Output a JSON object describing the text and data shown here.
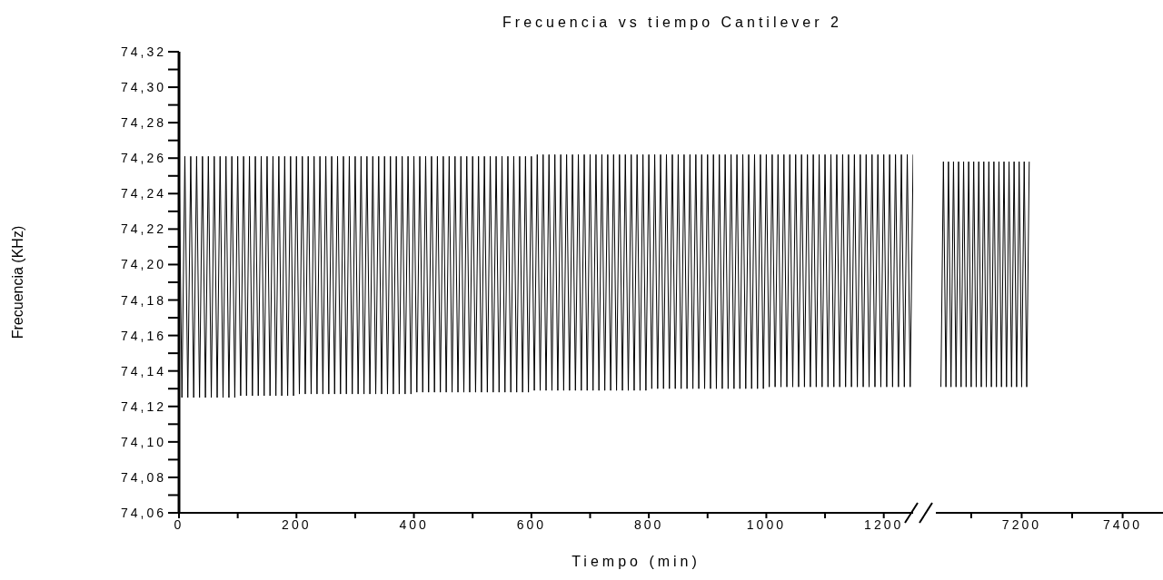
{
  "chart_data": [
    {
      "type": "line",
      "title": "Frecuencia vs tiempo Cantilever 2",
      "xlabel": "Tiempo (min)",
      "ylabel": "Frecuencia (KHz)",
      "color": "#000000",
      "xlim": [
        0,
        1250
      ],
      "xticks": [
        0,
        {
          "value": 100,
          "label": null
        },
        200,
        {
          "value": 300,
          "label": null
        },
        400,
        {
          "value": 500,
          "label": null
        },
        600,
        {
          "value": 700,
          "label": null
        },
        800,
        {
          "value": 900,
          "label": null
        },
        1000,
        {
          "value": 1100,
          "label": null
        },
        1200
      ],
      "ylim": [
        74.06,
        74.32
      ],
      "yticks": [
        {
          "value": 74.06,
          "label": "74,06"
        },
        {
          "value": 74.07,
          "label": null
        },
        {
          "value": 74.08,
          "label": "74,08"
        },
        {
          "value": 74.09,
          "label": null
        },
        {
          "value": 74.1,
          "label": "74,10"
        },
        {
          "value": 74.11,
          "label": null
        },
        {
          "value": 74.12,
          "label": "74,12"
        },
        {
          "value": 74.13,
          "label": null
        },
        {
          "value": 74.14,
          "label": "74,14"
        },
        {
          "value": 74.15,
          "label": null
        },
        {
          "value": 74.16,
          "label": "74,16"
        },
        {
          "value": 74.17,
          "label": null
        },
        {
          "value": 74.18,
          "label": "74,18"
        },
        {
          "value": 74.19,
          "label": null
        },
        {
          "value": 74.2,
          "label": "74,20"
        },
        {
          "value": 74.21,
          "label": null
        },
        {
          "value": 74.22,
          "label": "74,22"
        },
        {
          "value": 74.23,
          "label": null
        },
        {
          "value": 74.24,
          "label": "74,24"
        },
        {
          "value": 74.25,
          "label": null
        },
        {
          "value": 74.26,
          "label": "74,26"
        },
        {
          "value": 74.27,
          "label": null
        },
        {
          "value": 74.28,
          "label": "74,28"
        },
        {
          "value": 74.29,
          "label": null
        },
        {
          "value": 74.3,
          "label": "74,30"
        },
        {
          "value": 74.31,
          "label": null
        },
        {
          "value": 74.32,
          "label": "74,32"
        }
      ],
      "x": [
        0,
        5,
        10,
        15,
        20,
        25,
        30,
        35,
        40,
        45,
        50,
        55,
        60,
        65,
        70,
        75,
        80,
        85,
        90,
        95,
        100,
        105,
        110,
        115,
        120,
        125,
        130,
        135,
        140,
        145,
        150,
        155,
        160,
        165,
        170,
        175,
        180,
        185,
        190,
        195,
        200,
        205,
        210,
        215,
        220,
        225,
        230,
        235,
        240,
        245,
        250,
        255,
        260,
        265,
        270,
        275,
        280,
        285,
        290,
        295,
        300,
        305,
        310,
        315,
        320,
        325,
        330,
        335,
        340,
        345,
        350,
        355,
        360,
        365,
        370,
        375,
        380,
        385,
        390,
        395,
        400,
        405,
        410,
        415,
        420,
        425,
        430,
        435,
        440,
        445,
        450,
        455,
        460,
        465,
        470,
        475,
        480,
        485,
        490,
        495,
        500,
        505,
        510,
        515,
        520,
        525,
        530,
        535,
        540,
        545,
        550,
        555,
        560,
        565,
        570,
        575,
        580,
        585,
        590,
        595,
        600,
        605,
        610,
        615,
        620,
        625,
        630,
        635,
        640,
        645,
        650,
        655,
        660,
        665,
        670,
        675,
        680,
        685,
        690,
        695,
        700,
        705,
        710,
        715,
        720,
        725,
        730,
        735,
        740,
        745,
        750,
        755,
        760,
        765,
        770,
        775,
        780,
        785,
        790,
        795,
        800,
        805,
        810,
        815,
        820,
        825,
        830,
        835,
        840,
        845,
        850,
        855,
        860,
        865,
        870,
        875,
        880,
        885,
        890,
        895,
        900,
        905,
        910,
        915,
        920,
        925,
        930,
        935,
        940,
        945,
        950,
        955,
        960,
        965,
        970,
        975,
        980,
        985,
        990,
        995,
        1000,
        1005,
        1010,
        1015,
        1020,
        1025,
        1030,
        1035,
        1040,
        1045,
        1050,
        1055,
        1060,
        1065,
        1070,
        1075,
        1080,
        1085,
        1090,
        1095,
        1100,
        1105,
        1110,
        1115,
        1120,
        1125,
        1130,
        1135,
        1140,
        1145,
        1150,
        1155,
        1160,
        1165,
        1170,
        1175,
        1180,
        1185,
        1190,
        1195,
        1200,
        1205,
        1210,
        1215,
        1220,
        1225,
        1230,
        1235,
        1240,
        1245,
        1250
      ],
      "values": [
        74.267,
        74.125,
        74.261,
        74.125,
        74.261,
        74.125,
        74.261,
        74.125,
        74.261,
        74.125,
        74.261,
        74.125,
        74.261,
        74.125,
        74.261,
        74.125,
        74.261,
        74.125,
        74.261,
        74.125,
        74.261,
        74.126,
        74.261,
        74.126,
        74.261,
        74.126,
        74.261,
        74.126,
        74.261,
        74.126,
        74.261,
        74.126,
        74.261,
        74.126,
        74.261,
        74.126,
        74.261,
        74.126,
        74.261,
        74.126,
        74.261,
        74.127,
        74.261,
        74.127,
        74.261,
        74.127,
        74.261,
        74.127,
        74.261,
        74.127,
        74.261,
        74.127,
        74.261,
        74.127,
        74.261,
        74.127,
        74.261,
        74.127,
        74.261,
        74.127,
        74.261,
        74.127,
        74.261,
        74.127,
        74.261,
        74.127,
        74.261,
        74.127,
        74.261,
        74.127,
        74.261,
        74.127,
        74.261,
        74.127,
        74.261,
        74.127,
        74.261,
        74.127,
        74.261,
        74.127,
        74.261,
        74.128,
        74.261,
        74.128,
        74.261,
        74.128,
        74.261,
        74.128,
        74.261,
        74.128,
        74.261,
        74.128,
        74.261,
        74.128,
        74.261,
        74.128,
        74.261,
        74.128,
        74.261,
        74.128,
        74.261,
        74.128,
        74.261,
        74.128,
        74.261,
        74.128,
        74.261,
        74.128,
        74.261,
        74.128,
        74.261,
        74.128,
        74.261,
        74.128,
        74.261,
        74.128,
        74.261,
        74.128,
        74.261,
        74.128,
        74.261,
        74.129,
        74.262,
        74.129,
        74.262,
        74.129,
        74.262,
        74.129,
        74.262,
        74.129,
        74.262,
        74.129,
        74.262,
        74.129,
        74.262,
        74.129,
        74.262,
        74.129,
        74.262,
        74.129,
        74.262,
        74.129,
        74.262,
        74.129,
        74.262,
        74.129,
        74.262,
        74.129,
        74.262,
        74.129,
        74.262,
        74.129,
        74.262,
        74.129,
        74.262,
        74.129,
        74.262,
        74.129,
        74.262,
        74.129,
        74.262,
        74.13,
        74.262,
        74.13,
        74.262,
        74.13,
        74.262,
        74.13,
        74.262,
        74.13,
        74.262,
        74.13,
        74.262,
        74.13,
        74.262,
        74.13,
        74.262,
        74.13,
        74.262,
        74.13,
        74.262,
        74.13,
        74.262,
        74.13,
        74.262,
        74.13,
        74.262,
        74.13,
        74.262,
        74.13,
        74.262,
        74.13,
        74.262,
        74.13,
        74.262,
        74.13,
        74.262,
        74.13,
        74.262,
        74.13,
        74.262,
        74.131,
        74.262,
        74.131,
        74.262,
        74.131,
        74.262,
        74.131,
        74.262,
        74.131,
        74.262,
        74.131,
        74.262,
        74.131,
        74.262,
        74.131,
        74.262,
        74.131,
        74.262,
        74.131,
        74.262,
        74.131,
        74.262,
        74.131,
        74.262,
        74.131,
        74.262,
        74.131,
        74.262,
        74.131,
        74.262,
        74.131,
        74.262,
        74.131,
        74.262,
        74.131,
        74.262,
        74.131,
        74.262,
        74.131,
        74.262,
        74.131,
        74.262,
        74.131,
        74.262,
        74.131,
        74.262,
        74.131,
        74.262,
        74.131,
        74.262
      ]
    },
    {
      "type": "line",
      "color": "#000000",
      "tick_labels": "x",
      "xlim": [
        7030,
        7480
      ],
      "xticks": [
        {
          "value": 7100,
          "label": null
        },
        7200,
        {
          "value": 7300,
          "label": null
        },
        7400
      ],
      "ylim": [
        74.06,
        74.32
      ],
      "x": [
        7040,
        7045,
        7050,
        7055,
        7060,
        7065,
        7070,
        7075,
        7080,
        7085,
        7090,
        7095,
        7100,
        7105,
        7110,
        7115,
        7120,
        7125,
        7130,
        7135,
        7140,
        7145,
        7150,
        7155,
        7160,
        7165,
        7170,
        7175,
        7180,
        7185,
        7190,
        7195,
        7200,
        7205,
        7210,
        7215
      ],
      "values": [
        74.131,
        74.258,
        74.131,
        74.258,
        74.131,
        74.258,
        74.131,
        74.258,
        74.131,
        74.258,
        74.131,
        74.258,
        74.131,
        74.258,
        74.131,
        74.258,
        74.131,
        74.258,
        74.131,
        74.258,
        74.131,
        74.258,
        74.131,
        74.258,
        74.131,
        74.258,
        74.131,
        74.258,
        74.131,
        74.258,
        74.131,
        74.258,
        74.131,
        74.258,
        74.131,
        74.258
      ]
    }
  ]
}
